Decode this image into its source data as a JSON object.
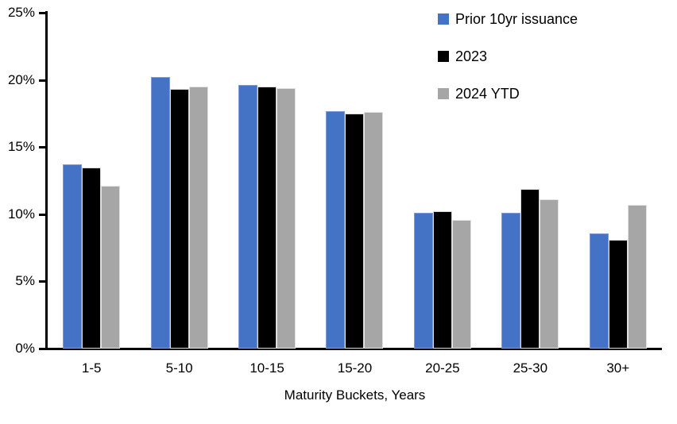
{
  "chart_data": {
    "type": "bar",
    "title": "",
    "xlabel": "Maturity Buckets, Years",
    "ylabel": "",
    "categories": [
      "1-5",
      "5-10",
      "10-15",
      "15-20",
      "20-25",
      "25-30",
      "30+"
    ],
    "series": [
      {
        "name": "Prior 10yr issuance",
        "color": "#4472C4",
        "border_color": "#7d9bd6",
        "values": [
          13.7,
          20.2,
          19.6,
          17.7,
          10.1,
          10.1,
          8.6
        ]
      },
      {
        "name": "2023",
        "color": "#000000",
        "border_color": "#d9d9d9",
        "values": [
          13.5,
          19.3,
          19.5,
          17.5,
          10.2,
          11.9,
          8.1
        ]
      },
      {
        "name": "2024 YTD",
        "color": "#A6A6A6",
        "border_color": "#e2e2e2",
        "values": [
          12.1,
          19.5,
          19.4,
          17.6,
          9.6,
          11.1,
          10.7
        ]
      }
    ],
    "ylim": [
      0,
      25
    ],
    "y_tick_values": [
      0,
      5,
      10,
      15,
      20,
      25
    ],
    "y_tick_labels": [
      "0%",
      "5%",
      "10%",
      "15%",
      "20%",
      "25%"
    ],
    "legend_position": "top-right",
    "grid": false,
    "axis_color": "#000000",
    "background_color": "#ffffff"
  }
}
